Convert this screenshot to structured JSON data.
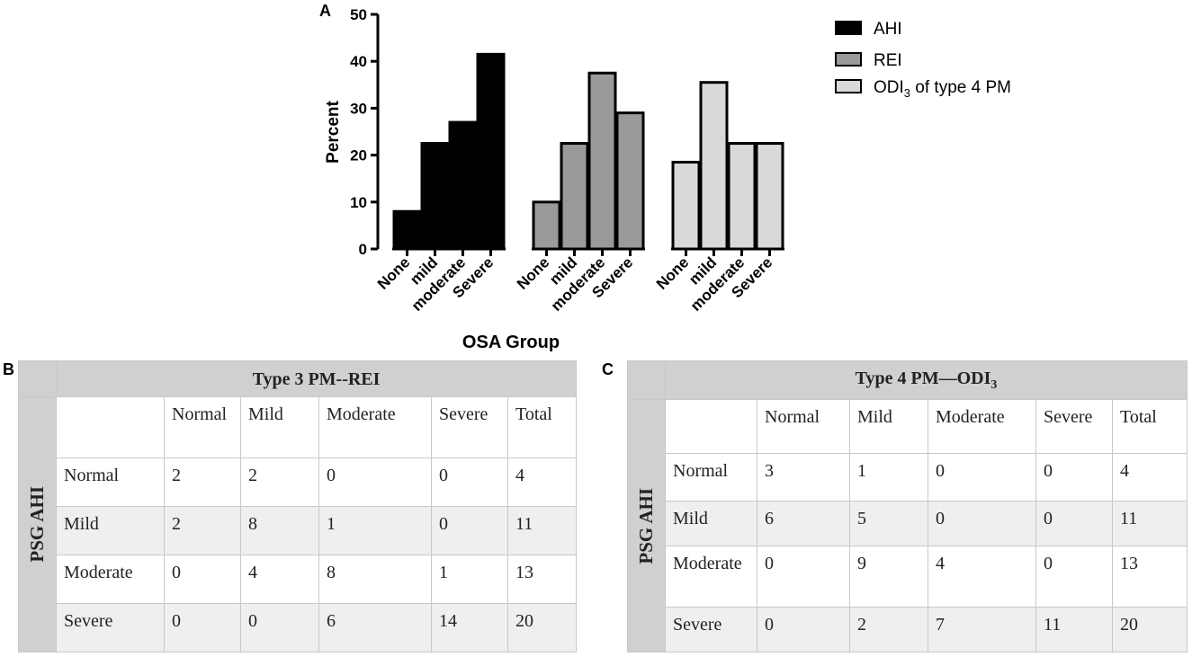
{
  "chart_data": {
    "type": "bar",
    "ylabel": "Percent",
    "xlabel": "OSA Group",
    "ylim": [
      0,
      50
    ],
    "yticks": [
      0,
      10,
      20,
      30,
      40,
      50
    ],
    "categories": [
      "None",
      "mild",
      "moderate",
      "Severe"
    ],
    "series": [
      {
        "name": "AHI",
        "values": [
          8,
          22.5,
          27,
          41.5
        ],
        "color": "#000000"
      },
      {
        "name": "REI",
        "values": [
          10,
          22.5,
          37.5,
          29
        ],
        "color": "#9a9a9a"
      },
      {
        "name": "ODI3 of type 4  PM",
        "values": [
          18.5,
          35.5,
          22.5,
          22.5
        ],
        "color": "#d9d9d9"
      }
    ]
  },
  "panels": {
    "a": "A",
    "b": "B",
    "c": "C"
  },
  "legend": {
    "ahi": "AHI",
    "rei": "REI",
    "odi_prefix": "ODI",
    "odi_sub": "3",
    "odi_suffix": " of type 4  PM"
  },
  "table_b": {
    "title": "Type  3 PM--REI",
    "side_label": "PSG AHI",
    "headers": [
      "Normal",
      "Mild",
      "Moderate",
      "Severe",
      "Total"
    ],
    "rows": [
      {
        "label": "Normal",
        "values": [
          "2",
          "2",
          "0",
          "0",
          "4"
        ]
      },
      {
        "label": "Mild",
        "values": [
          "2",
          "8",
          "1",
          "0",
          "11"
        ]
      },
      {
        "label": "Moderate",
        "values": [
          "0",
          "4",
          "8",
          "1",
          "13"
        ]
      },
      {
        "label": "Severe",
        "values": [
          "0",
          "0",
          "6",
          "14",
          "20"
        ]
      }
    ]
  },
  "table_c": {
    "title_prefix": "Type  4 PM—ODI",
    "title_sub": "3",
    "side_label": "PSG AHI",
    "headers": [
      "Normal",
      "Mild",
      "Moderate",
      "Severe",
      "Total"
    ],
    "rows": [
      {
        "label": "Normal",
        "values": [
          "3",
          "1",
          "0",
          "0",
          "4"
        ]
      },
      {
        "label": "Mild",
        "values": [
          "6",
          "5",
          "0",
          "0",
          "11"
        ]
      },
      {
        "label": "Moderate",
        "values": [
          "0",
          "9",
          "4",
          "0",
          "13"
        ]
      },
      {
        "label": "Severe",
        "values": [
          "0",
          "2",
          "7",
          "11",
          "20"
        ]
      }
    ]
  }
}
